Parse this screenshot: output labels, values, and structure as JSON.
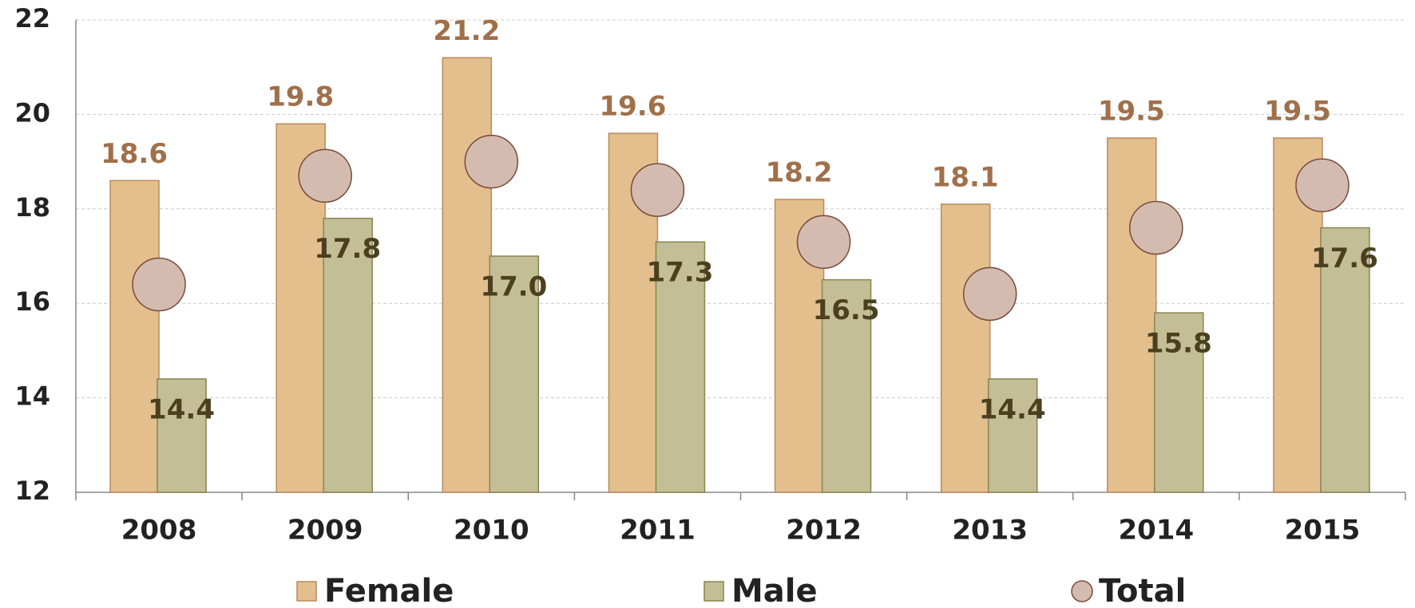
{
  "chart_data": {
    "type": "bar",
    "categories": [
      "2008",
      "2009",
      "2010",
      "2011",
      "2012",
      "2013",
      "2014",
      "2015"
    ],
    "series": [
      {
        "name": "Female",
        "color": "#e3bf8e",
        "values": [
          18.6,
          19.8,
          21.2,
          19.6,
          18.2,
          18.1,
          19.5,
          19.5
        ]
      },
      {
        "name": "Male",
        "color": "#c4be96",
        "values": [
          14.4,
          17.8,
          17.0,
          17.3,
          16.5,
          14.4,
          15.8,
          17.6
        ],
        "value_labels": [
          "14.4",
          "17.8",
          "17.0",
          "17.3",
          "16.5",
          "14.4",
          "15.8",
          "17.6"
        ]
      },
      {
        "name": "Total",
        "type": "scatter",
        "color": "#d4bbb0",
        "values": [
          16.4,
          18.7,
          19.0,
          18.4,
          17.3,
          16.2,
          17.6,
          18.5
        ]
      }
    ],
    "ylim": [
      12,
      22
    ],
    "yticks": [
      12,
      14,
      16,
      18,
      20,
      22
    ],
    "grid": true,
    "legend": "bottom"
  }
}
